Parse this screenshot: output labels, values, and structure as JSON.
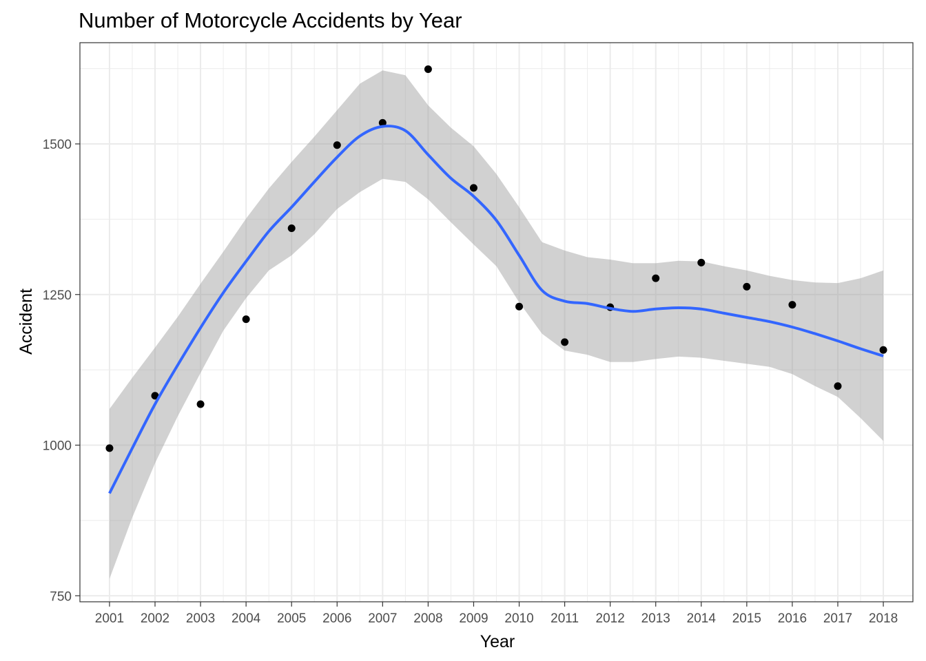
{
  "chart_data": {
    "type": "scatter",
    "title": "Number of Motorcycle Accidents by Year",
    "xlabel": "Year",
    "ylabel": "Accident",
    "x_tick_labels": [
      "2001",
      "2002",
      "2003",
      "2004",
      "2005",
      "2006",
      "2007",
      "2008",
      "2009",
      "2010",
      "2011",
      "2012",
      "2013",
      "2014",
      "2015",
      "2016",
      "2017",
      "2018"
    ],
    "y_ticks": [
      750,
      1000,
      1250,
      1500
    ],
    "y_tick_labels": [
      "750",
      "1000",
      "1250",
      "1500"
    ],
    "xlim": [
      2000.35,
      2018.65
    ],
    "ylim": [
      740,
      1668
    ],
    "grid": true,
    "legend": "none",
    "series": [
      {
        "type": "points",
        "x": [
          2001,
          2002,
          2003,
          2004,
          2005,
          2006,
          2007,
          2008,
          2009,
          2010,
          2011,
          2012,
          2013,
          2014,
          2015,
          2016,
          2017,
          2018
        ],
        "values": [
          995,
          1082,
          1068,
          1209,
          1360,
          1498,
          1535,
          1624,
          1427,
          1230,
          1171,
          1229,
          1277,
          1303,
          1263,
          1233,
          1098,
          1158
        ]
      },
      {
        "type": "smooth",
        "x": [
          2001,
          2001.5,
          2002,
          2002.5,
          2003,
          2003.5,
          2004,
          2004.5,
          2005,
          2005.5,
          2006,
          2006.5,
          2007,
          2007.5,
          2008,
          2008.5,
          2009,
          2009.5,
          2010,
          2010.5,
          2011,
          2011.5,
          2012,
          2012.5,
          2013,
          2013.5,
          2014,
          2014.5,
          2015,
          2015.5,
          2016,
          2016.5,
          2017,
          2017.5,
          2018
        ],
        "values": [
          920,
          995,
          1068,
          1133,
          1195,
          1253,
          1305,
          1355,
          1395,
          1437,
          1478,
          1513,
          1529,
          1522,
          1482,
          1443,
          1413,
          1373,
          1315,
          1257,
          1239,
          1235,
          1227,
          1222,
          1226,
          1228,
          1226,
          1219,
          1212,
          1205,
          1196,
          1185,
          1173,
          1160,
          1148
        ],
        "ci_lower": [
          778,
          880,
          970,
          1048,
          1120,
          1190,
          1244,
          1290,
          1315,
          1350,
          1392,
          1420,
          1442,
          1437,
          1408,
          1370,
          1333,
          1297,
          1237,
          1185,
          1157,
          1150,
          1138,
          1138,
          1143,
          1147,
          1145,
          1140,
          1135,
          1130,
          1118,
          1098,
          1080,
          1045,
          1007
        ],
        "ci_upper": [
          1060,
          1112,
          1162,
          1213,
          1268,
          1321,
          1376,
          1426,
          1470,
          1512,
          1556,
          1600,
          1622,
          1614,
          1564,
          1527,
          1496,
          1450,
          1395,
          1337,
          1323,
          1312,
          1308,
          1302,
          1302,
          1306,
          1305,
          1297,
          1290,
          1281,
          1274,
          1270,
          1269,
          1277,
          1290
        ]
      }
    ],
    "colors": {
      "point": "#000000",
      "line": "#3366FF",
      "ribbon": "#999999",
      "grid": "#EBEBEB",
      "panel_border": "#333333",
      "tick_label": "#4D4D4D"
    }
  }
}
